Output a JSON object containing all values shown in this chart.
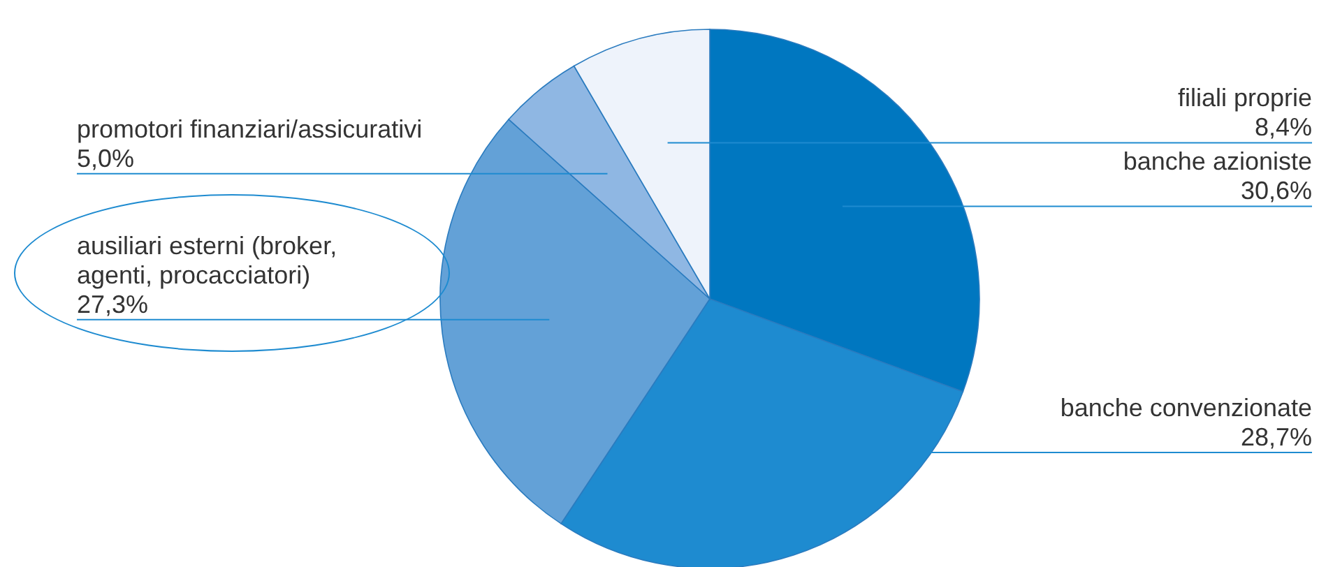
{
  "chart_data": {
    "type": "pie",
    "categories": [
      "banche azioniste",
      "banche convenzionate",
      "ausiliari esterni (broker, agenti, procacciatori)",
      "promotori finanziari/assicurativi",
      "filiali proprie"
    ],
    "values": [
      30.6,
      28.7,
      27.3,
      5.0,
      8.4
    ],
    "value_labels": [
      "30,6%",
      "28,7%",
      "27,3%",
      "5,0%",
      "8,4%"
    ],
    "colors": [
      "#0077c0",
      "#1e8bd0",
      "#63a1d7",
      "#8fb7e3",
      "#eef3fb"
    ]
  }
}
